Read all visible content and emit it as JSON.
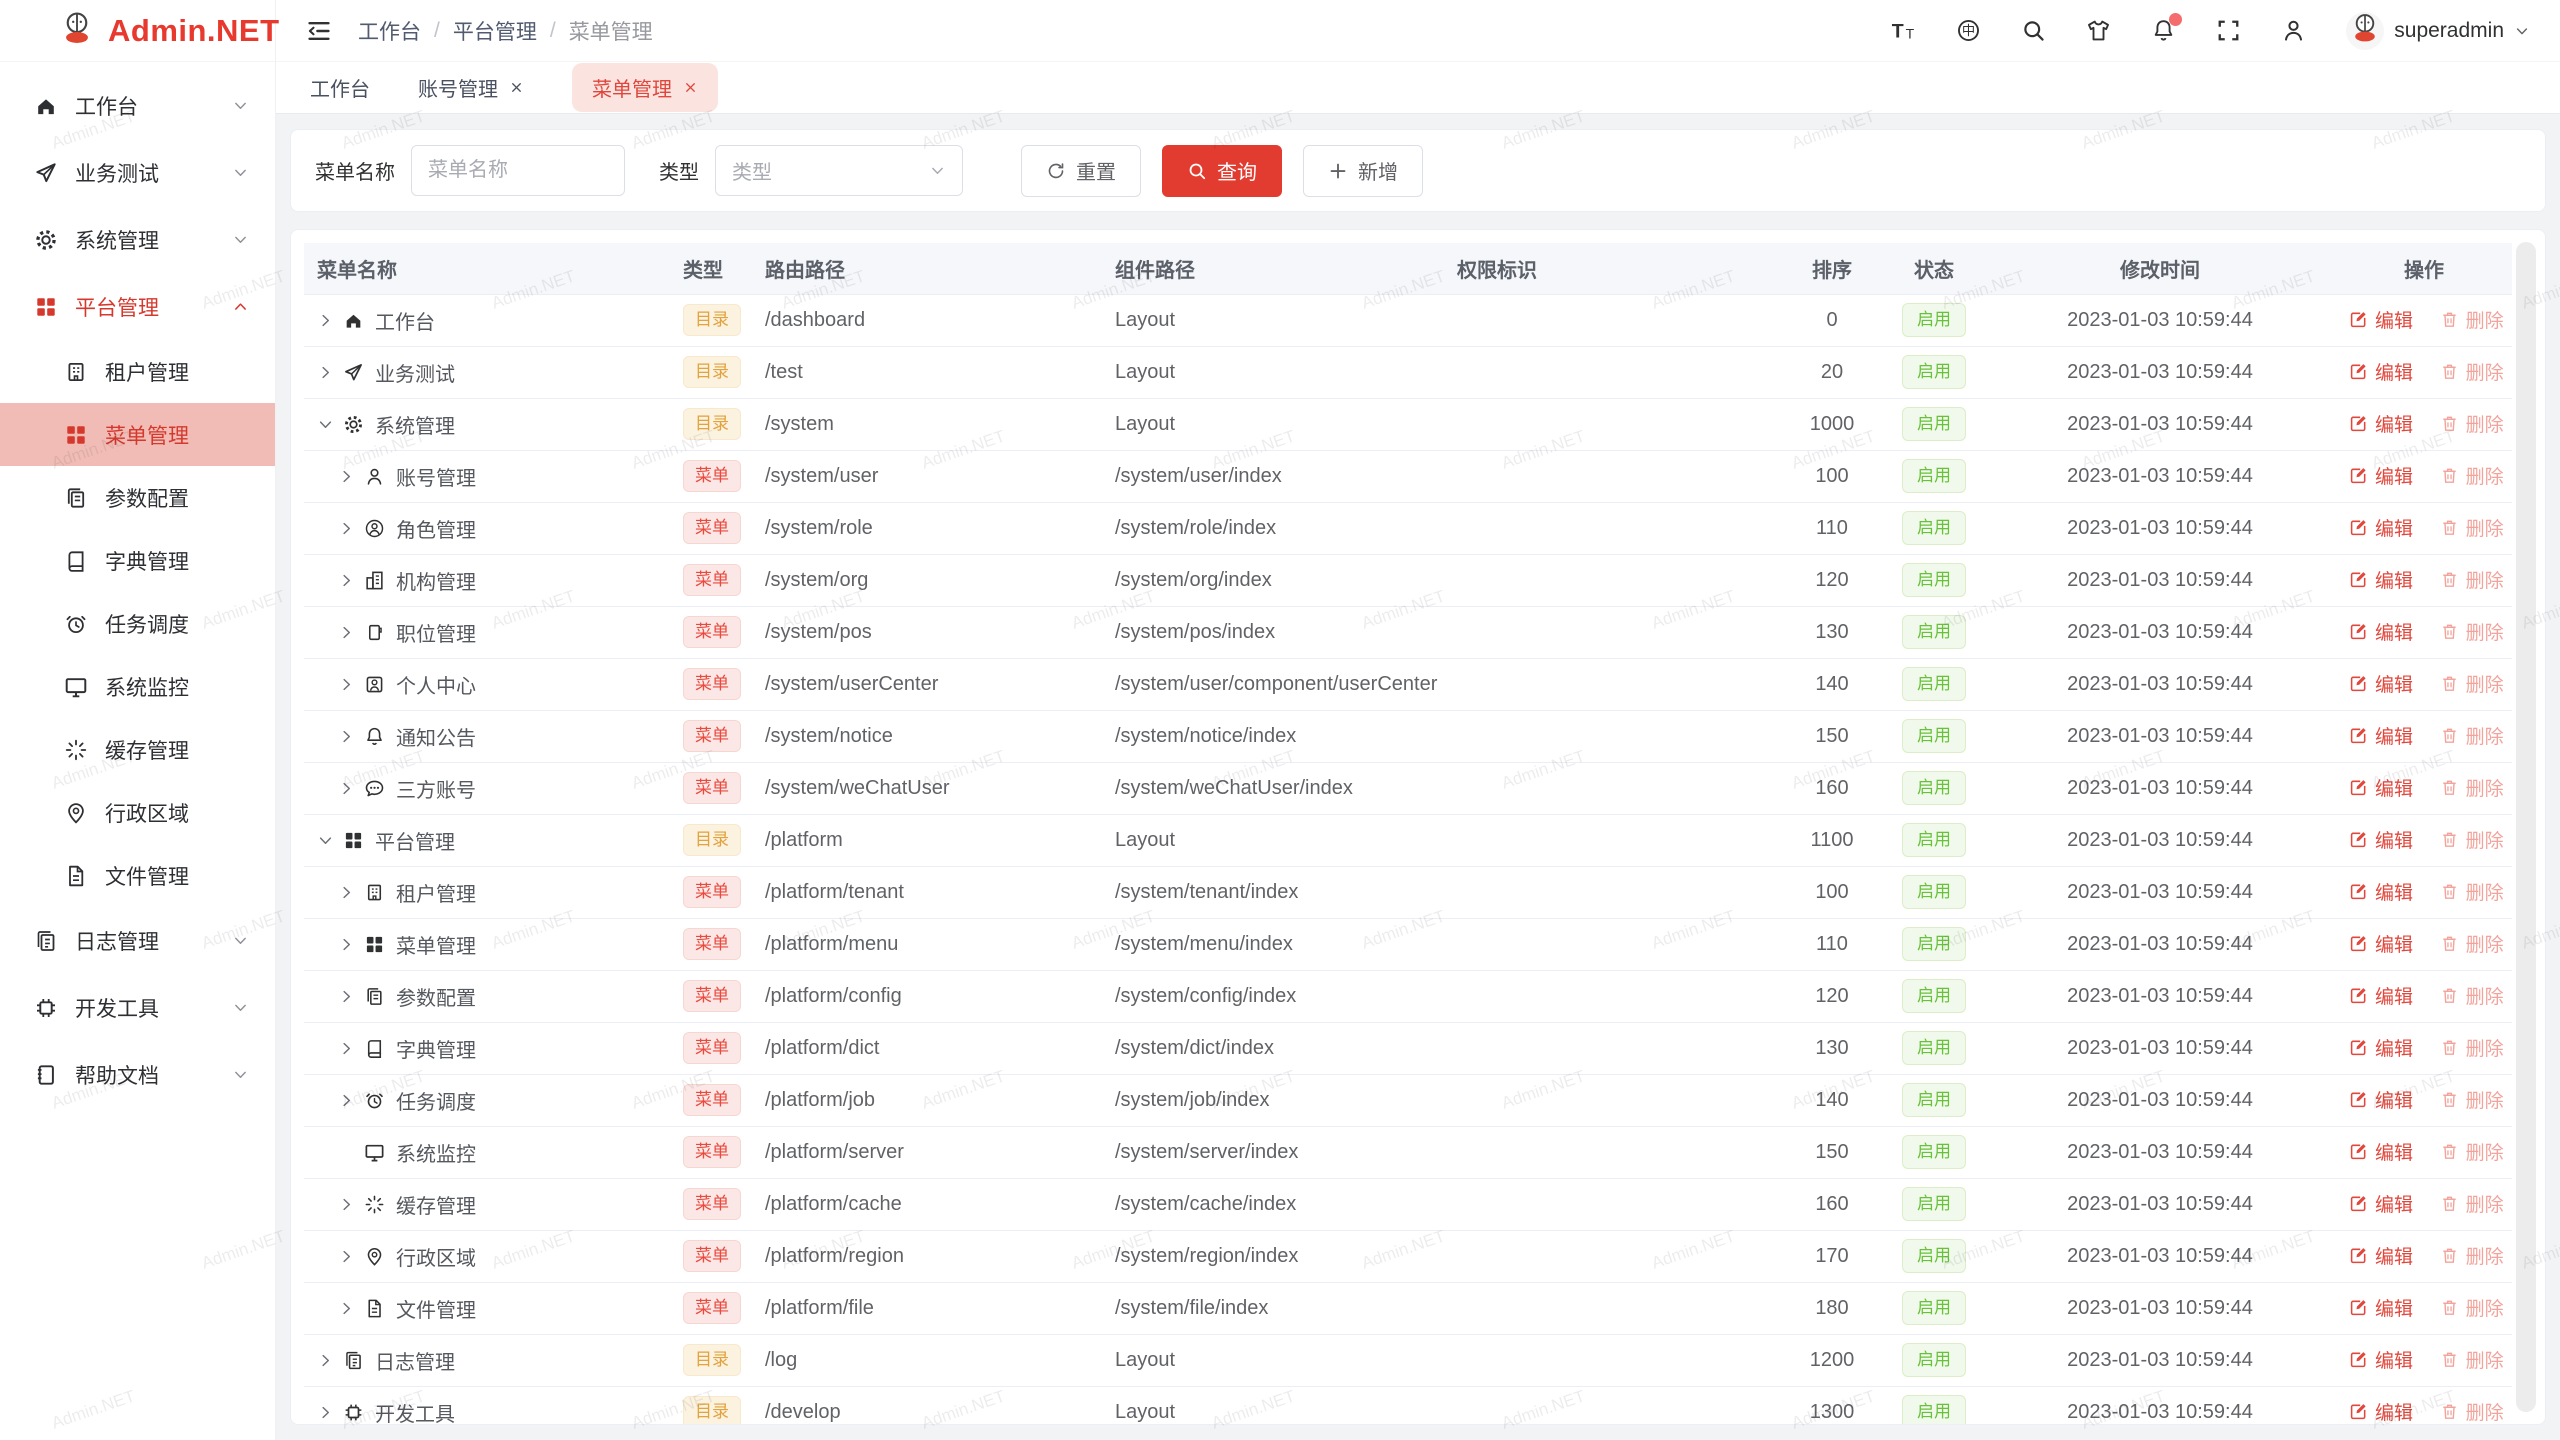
{
  "watermark_text": "Admin.NET",
  "colors": {
    "primary": "#e23c30",
    "sidebar_active_bg": "#f0bcb5",
    "tag_dir": "#e2a23c",
    "tag_menu": "#ea4a3e",
    "status_enabled": "#67c23a",
    "delete_disabled": "#f2a49c"
  },
  "logo": {
    "title": "Admin.NET",
    "icon": "mascot"
  },
  "sidebar": {
    "items": [
      {
        "label": "工作台",
        "icon": "home",
        "chevron": "down",
        "level": 1
      },
      {
        "label": "业务测试",
        "icon": "send",
        "chevron": "down",
        "level": 1
      },
      {
        "label": "系统管理",
        "icon": "gear",
        "chevron": "down",
        "level": 1
      },
      {
        "label": "平台管理",
        "icon": "grid",
        "chevron": "up",
        "level": 1,
        "active": true
      },
      {
        "label": "租户管理",
        "icon": "tenant",
        "level": 2
      },
      {
        "label": "菜单管理",
        "icon": "grid",
        "level": 2,
        "selected": true
      },
      {
        "label": "参数配置",
        "icon": "config",
        "level": 2
      },
      {
        "label": "字典管理",
        "icon": "dict",
        "level": 2
      },
      {
        "label": "任务调度",
        "icon": "job",
        "level": 2
      },
      {
        "label": "系统监控",
        "icon": "monitor",
        "level": 2
      },
      {
        "label": "缓存管理",
        "icon": "cache",
        "level": 2
      },
      {
        "label": "行政区域",
        "icon": "region",
        "level": 2
      },
      {
        "label": "文件管理",
        "icon": "file",
        "level": 2
      },
      {
        "label": "日志管理",
        "icon": "log",
        "chevron": "down",
        "level": 1
      },
      {
        "label": "开发工具",
        "icon": "develop",
        "chevron": "down",
        "level": 1
      },
      {
        "label": "帮助文档",
        "icon": "help",
        "chevron": "down",
        "level": 1
      }
    ]
  },
  "topbar": {
    "breadcrumb": [
      "工作台",
      "平台管理",
      "菜单管理"
    ],
    "icons": [
      "font-size",
      "language",
      "search",
      "theme",
      "notification",
      "fullscreen",
      "profile"
    ],
    "notification_has_dot": true,
    "username": "superadmin"
  },
  "tabs": [
    {
      "label": "工作台",
      "closable": false,
      "active": false
    },
    {
      "label": "账号管理",
      "closable": true,
      "active": false
    },
    {
      "label": "菜单管理",
      "closable": true,
      "active": true
    }
  ],
  "filter": {
    "name_label": "菜单名称",
    "name_placeholder": "菜单名称",
    "name_value": "",
    "type_label": "类型",
    "type_placeholder": "类型",
    "reset_label": "重置",
    "query_label": "查询",
    "add_label": "新增"
  },
  "table": {
    "columns": [
      "菜单名称",
      "类型",
      "路由路径",
      "组件路径",
      "权限标识",
      "排序",
      "状态",
      "修改时间",
      "操作"
    ],
    "edit_label": "编辑",
    "delete_label": "删除",
    "rows": [
      {
        "name": "工作台",
        "icon": "home",
        "level": 1,
        "caret": "right",
        "type": "目录",
        "route": "/dashboard",
        "component": "Layout",
        "perm": "",
        "sort": 0,
        "status": "启用",
        "time": "2023-01-03 10:59:44"
      },
      {
        "name": "业务测试",
        "icon": "send",
        "level": 1,
        "caret": "right",
        "type": "目录",
        "route": "/test",
        "component": "Layout",
        "perm": "",
        "sort": 20,
        "status": "启用",
        "time": "2023-01-03 10:59:44"
      },
      {
        "name": "系统管理",
        "icon": "gear",
        "level": 1,
        "caret": "down",
        "type": "目录",
        "route": "/system",
        "component": "Layout",
        "perm": "",
        "sort": 1000,
        "status": "启用",
        "time": "2023-01-03 10:59:44"
      },
      {
        "name": "账号管理",
        "icon": "user",
        "level": 2,
        "caret": "right",
        "type": "菜单",
        "route": "/system/user",
        "component": "/system/user/index",
        "perm": "",
        "sort": 100,
        "status": "启用",
        "time": "2023-01-03 10:59:44"
      },
      {
        "name": "角色管理",
        "icon": "role",
        "level": 2,
        "caret": "right",
        "type": "菜单",
        "route": "/system/role",
        "component": "/system/role/index",
        "perm": "",
        "sort": 110,
        "status": "启用",
        "time": "2023-01-03 10:59:44"
      },
      {
        "name": "机构管理",
        "icon": "org",
        "level": 2,
        "caret": "right",
        "type": "菜单",
        "route": "/system/org",
        "component": "/system/org/index",
        "perm": "",
        "sort": 120,
        "status": "启用",
        "time": "2023-01-03 10:59:44"
      },
      {
        "name": "职位管理",
        "icon": "position",
        "level": 2,
        "caret": "right",
        "type": "菜单",
        "route": "/system/pos",
        "component": "/system/pos/index",
        "perm": "",
        "sort": 130,
        "status": "启用",
        "time": "2023-01-03 10:59:44"
      },
      {
        "name": "个人中心",
        "icon": "usercenter",
        "level": 2,
        "caret": "right",
        "type": "菜单",
        "route": "/system/userCenter",
        "component": "/system/user/component/userCenter",
        "perm": "",
        "sort": 140,
        "status": "启用",
        "time": "2023-01-03 10:59:44"
      },
      {
        "name": "通知公告",
        "icon": "bell",
        "level": 2,
        "caret": "right",
        "type": "菜单",
        "route": "/system/notice",
        "component": "/system/notice/index",
        "perm": "",
        "sort": 150,
        "status": "启用",
        "time": "2023-01-03 10:59:44"
      },
      {
        "name": "三方账号",
        "icon": "chat",
        "level": 2,
        "caret": "right",
        "type": "菜单",
        "route": "/system/weChatUser",
        "component": "/system/weChatUser/index",
        "perm": "",
        "sort": 160,
        "status": "启用",
        "time": "2023-01-03 10:59:44"
      },
      {
        "name": "平台管理",
        "icon": "grid",
        "level": 1,
        "caret": "down",
        "type": "目录",
        "route": "/platform",
        "component": "Layout",
        "perm": "",
        "sort": 1100,
        "status": "启用",
        "time": "2023-01-03 10:59:44"
      },
      {
        "name": "租户管理",
        "icon": "tenant",
        "level": 2,
        "caret": "right",
        "type": "菜单",
        "route": "/platform/tenant",
        "component": "/system/tenant/index",
        "perm": "",
        "sort": 100,
        "status": "启用",
        "time": "2023-01-03 10:59:44"
      },
      {
        "name": "菜单管理",
        "icon": "grid",
        "level": 2,
        "caret": "right",
        "type": "菜单",
        "route": "/platform/menu",
        "component": "/system/menu/index",
        "perm": "",
        "sort": 110,
        "status": "启用",
        "time": "2023-01-03 10:59:44"
      },
      {
        "name": "参数配置",
        "icon": "config",
        "level": 2,
        "caret": "right",
        "type": "菜单",
        "route": "/platform/config",
        "component": "/system/config/index",
        "perm": "",
        "sort": 120,
        "status": "启用",
        "time": "2023-01-03 10:59:44"
      },
      {
        "name": "字典管理",
        "icon": "dict",
        "level": 2,
        "caret": "right",
        "type": "菜单",
        "route": "/platform/dict",
        "component": "/system/dict/index",
        "perm": "",
        "sort": 130,
        "status": "启用",
        "time": "2023-01-03 10:59:44"
      },
      {
        "name": "任务调度",
        "icon": "job",
        "level": 2,
        "caret": "right",
        "type": "菜单",
        "route": "/platform/job",
        "component": "/system/job/index",
        "perm": "",
        "sort": 140,
        "status": "启用",
        "time": "2023-01-03 10:59:44"
      },
      {
        "name": "系统监控",
        "icon": "monitor",
        "level": 2,
        "caret": null,
        "type": "菜单",
        "route": "/platform/server",
        "component": "/system/server/index",
        "perm": "",
        "sort": 150,
        "status": "启用",
        "time": "2023-01-03 10:59:44"
      },
      {
        "name": "缓存管理",
        "icon": "cache",
        "level": 2,
        "caret": "right",
        "type": "菜单",
        "route": "/platform/cache",
        "component": "/system/cache/index",
        "perm": "",
        "sort": 160,
        "status": "启用",
        "time": "2023-01-03 10:59:44"
      },
      {
        "name": "行政区域",
        "icon": "region",
        "level": 2,
        "caret": "right",
        "type": "菜单",
        "route": "/platform/region",
        "component": "/system/region/index",
        "perm": "",
        "sort": 170,
        "status": "启用",
        "time": "2023-01-03 10:59:44"
      },
      {
        "name": "文件管理",
        "icon": "file",
        "level": 2,
        "caret": "right",
        "type": "菜单",
        "route": "/platform/file",
        "component": "/system/file/index",
        "perm": "",
        "sort": 180,
        "status": "启用",
        "time": "2023-01-03 10:59:44"
      },
      {
        "name": "日志管理",
        "icon": "log",
        "level": 1,
        "caret": "right",
        "type": "目录",
        "route": "/log",
        "component": "Layout",
        "perm": "",
        "sort": 1200,
        "status": "启用",
        "time": "2023-01-03 10:59:44"
      },
      {
        "name": "开发工具",
        "icon": "develop",
        "level": 1,
        "caret": "right",
        "type": "目录",
        "route": "/develop",
        "component": "Layout",
        "perm": "",
        "sort": 1300,
        "status": "启用",
        "time": "2023-01-03 10:59:44"
      }
    ]
  }
}
